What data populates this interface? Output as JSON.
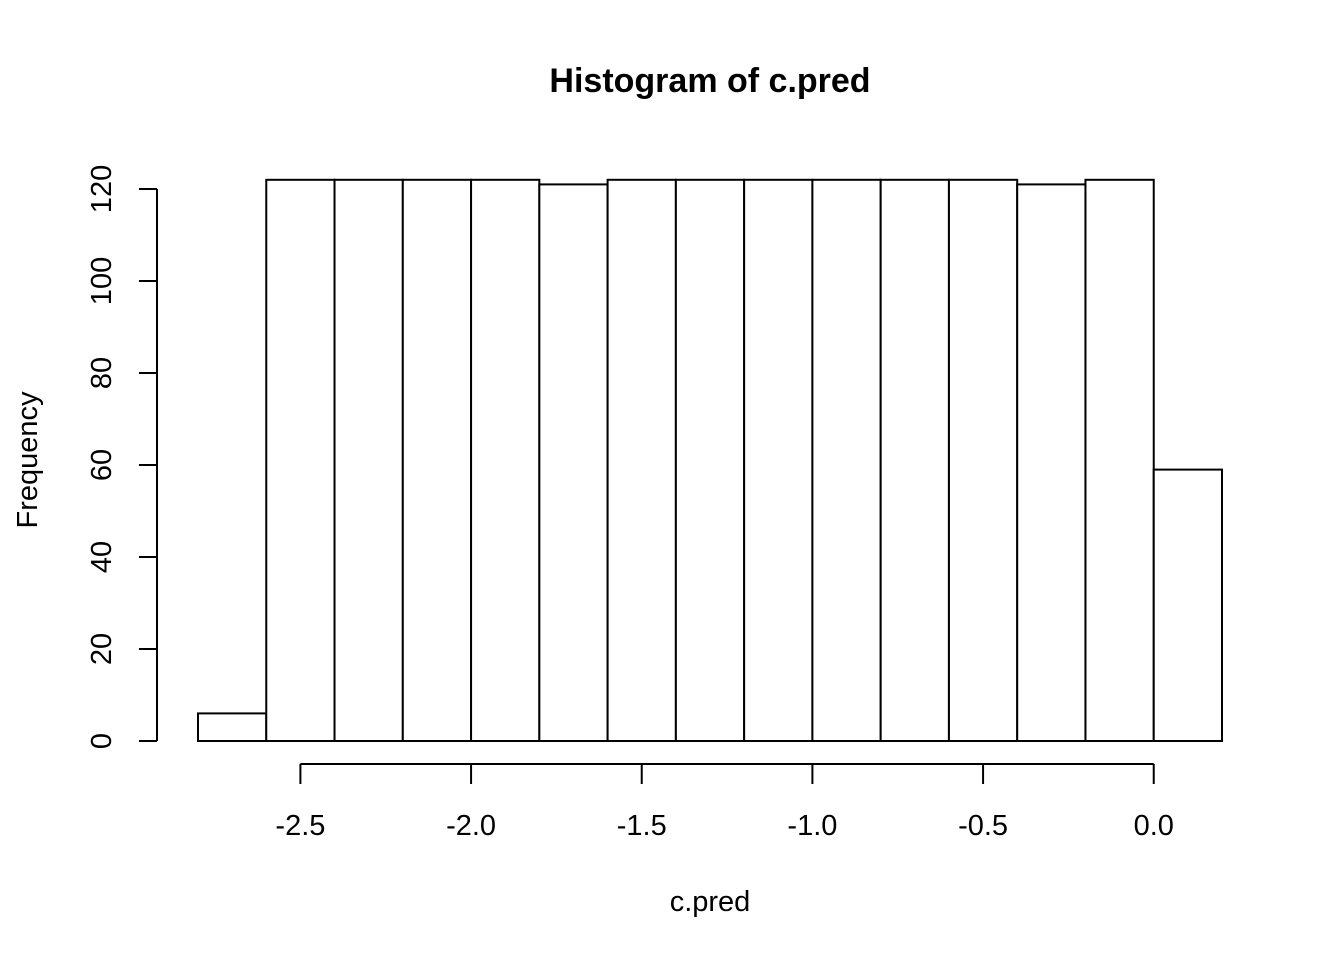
{
  "chart_data": {
    "type": "bar",
    "title": "Histogram of c.pred",
    "xlabel": "c.pred",
    "ylabel": "Frequency",
    "bin_edges": [
      -2.8,
      -2.6,
      -2.4,
      -2.2,
      -2.0,
      -1.8,
      -1.6,
      -1.4,
      -1.2,
      -1.0,
      -0.8,
      -0.6,
      -0.4,
      -0.2,
      0.0,
      0.2
    ],
    "values": [
      6,
      122,
      122,
      122,
      122,
      121,
      122,
      122,
      122,
      122,
      122,
      122,
      121,
      122,
      59
    ],
    "xlim": [
      -2.8,
      0.2
    ],
    "ylim": [
      0,
      122
    ],
    "xticks": [
      -2.5,
      -2.0,
      -1.5,
      -1.0,
      -0.5,
      0.0
    ],
    "xtick_labels": [
      "-2.5",
      "-2.0",
      "-1.5",
      "-1.0",
      "-0.5",
      "0.0"
    ],
    "yticks": [
      0,
      20,
      40,
      60,
      80,
      100,
      120
    ],
    "ytick_labels": [
      "0",
      "20",
      "40",
      "60",
      "80",
      "100",
      "120"
    ],
    "grid": false,
    "legend": "none",
    "bar_fill": "#ffffff",
    "bar_stroke": "#000000"
  }
}
